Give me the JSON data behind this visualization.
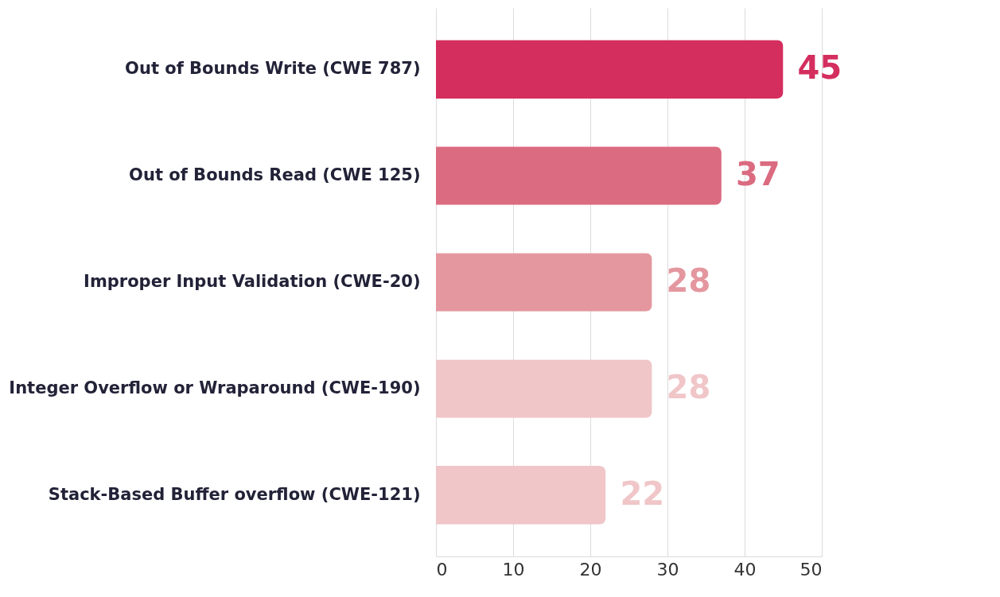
{
  "chart_data": {
    "type": "bar",
    "orientation": "horizontal",
    "categories": [
      "Out of Bounds Write (CWE 787)",
      "Out of Bounds Read (CWE 125)",
      "Improper Input Validation (CWE-20)",
      "Integer Overflow or Wraparound (CWE-190)",
      "Stack-Based Buffer overflow (CWE-121)"
    ],
    "values": [
      45,
      37,
      28,
      28,
      22
    ],
    "colors": [
      "#d42e5f",
      "#db6b80",
      "#e4979f",
      "#f0c6c8",
      "#f0c6c8"
    ],
    "xlim": [
      0,
      50
    ],
    "xticks": [
      0,
      10,
      20,
      30,
      40,
      50
    ],
    "grid": "x",
    "data_labels": true
  }
}
